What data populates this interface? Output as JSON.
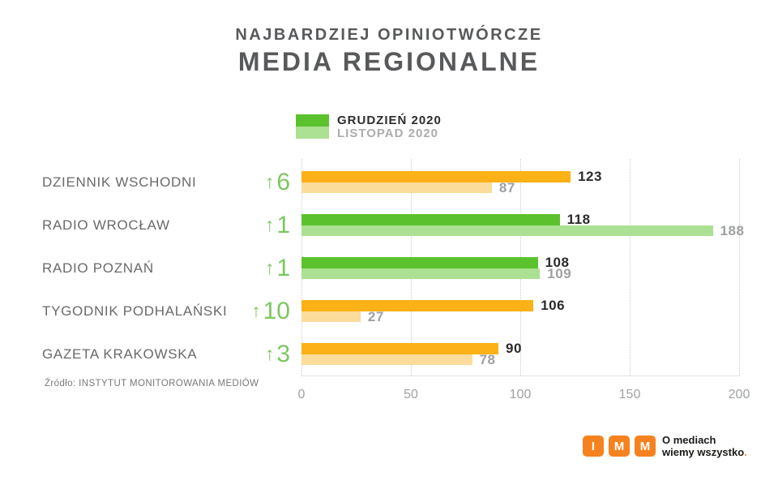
{
  "page": {
    "title_line1": "NAJBARDZIEJ OPINIOTWÓRCZE",
    "title_line2": "MEDIA REGIONALNE",
    "source": "Źródło: INSTYTUT MONITOROWANIA MEDIÓW"
  },
  "legend": {
    "items": [
      {
        "label": "GRUDZIEŃ 2020",
        "color": "#5BC22E"
      },
      {
        "label": "LISTOPAD 2020",
        "color": "#ACE092"
      }
    ]
  },
  "chart_data": {
    "type": "bar",
    "orientation": "horizontal",
    "title": "NAJBARDZIEJ OPINIOTWÓRCZE MEDIA REGIONALNE",
    "legend": [
      "GRUDZIEŃ 2020",
      "LISTOPAD 2020"
    ],
    "legend_position": "top-center",
    "xlim": [
      0,
      200
    ],
    "xticks": [
      "0",
      "50",
      "100",
      "150",
      "200"
    ],
    "grid": "vertical-dotted",
    "series_names": [
      "GRUDZIEŃ 2020",
      "LISTOPAD 2020"
    ],
    "rows": [
      {
        "label": "DZIENNIK WSCHODNI",
        "arrow": "↑",
        "rank_change": "6",
        "current": 123,
        "previous": 87,
        "color_current": "#FCB116",
        "color_previous": "#FBDC9B"
      },
      {
        "label": "RADIO WROCŁAW",
        "arrow": "↑",
        "rank_change": "1",
        "current": 118,
        "previous": 188,
        "color_current": "#5BC22E",
        "color_previous": "#ACE092"
      },
      {
        "label": "RADIO POZNAŃ",
        "arrow": "↑",
        "rank_change": "1",
        "current": 108,
        "previous": 109,
        "color_current": "#5BC22E",
        "color_previous": "#ACE092"
      },
      {
        "label": "TYGODNIK PODHALAŃSKI",
        "arrow": "↑",
        "rank_change": "10",
        "current": 106,
        "previous": 27,
        "color_current": "#FCB116",
        "color_previous": "#FBDC9B"
      },
      {
        "label": "GAZETA KRAKOWSKA",
        "arrow": "↑",
        "rank_change": "3",
        "current": 90,
        "previous": 78,
        "color_current": "#FCB116",
        "color_previous": "#FBDC9B"
      }
    ]
  },
  "branding": {
    "logo_letters": [
      "I",
      "M",
      "M"
    ],
    "logo_color": "#F6821F",
    "tagline_line1": "O mediach",
    "tagline_line2": "wiemy wszystko",
    "tagline_dot": "."
  },
  "colors": {
    "accent_green": "#7CC75F",
    "title_gray": "#58595B",
    "value_current_text": "#2B2B2B",
    "value_previous_text": "#9EA0A2",
    "gridline": "#C9C9C9"
  }
}
